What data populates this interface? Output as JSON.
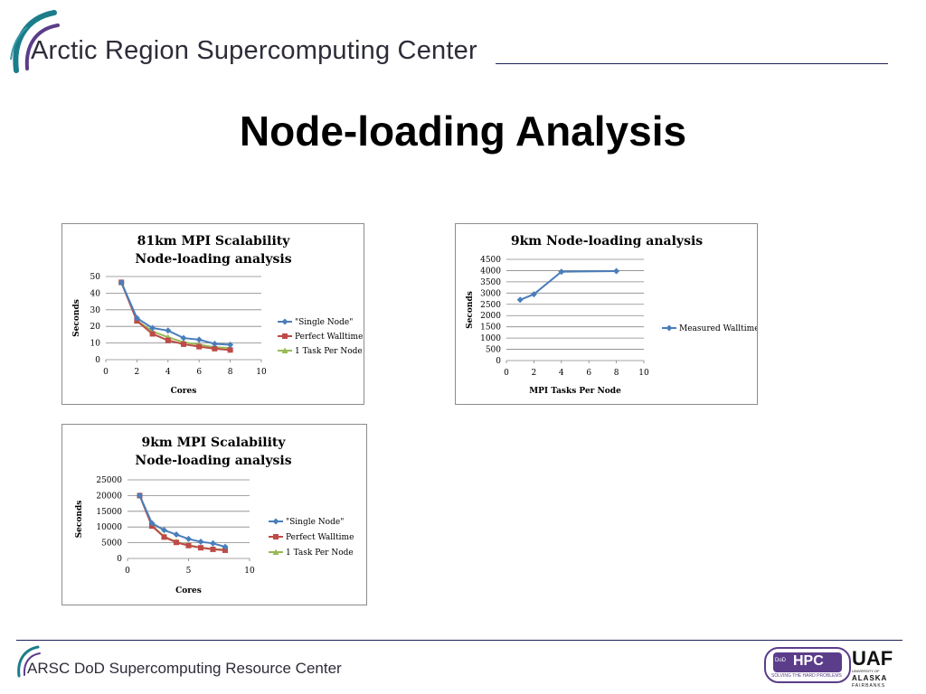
{
  "header": {
    "title": "Arctic Region Supercomputing Center"
  },
  "slide": {
    "title": "Node-loading Analysis"
  },
  "footer": {
    "text": "ARSC DoD Supercomputing Resource Center",
    "hpc_logo": {
      "word": "HPC",
      "small_text": "DoD",
      "tagline": "SOLVING THE HARD PROBLEMS"
    },
    "uaf_logo": {
      "word": "UAF",
      "sub": "UNIVERSITY OF",
      "alaska": "ALASKA",
      "city": "FAIRBANKS"
    }
  },
  "colors": {
    "single_node": "#4a7ebb",
    "perfect": "#be4b48",
    "one_task": "#98b954",
    "grid": "#868686",
    "logo_arc_teal": "#1b7d8a",
    "logo_arc_purple": "#5b3d8a",
    "hpc_purple": "#5b3d8a"
  },
  "chart_data": [
    {
      "type": "line",
      "title": "81km MPI Scalability",
      "subtitle": "Node-loading analysis",
      "xlabel": "Cores",
      "ylabel": "Seconds",
      "xlim": [
        0,
        10
      ],
      "ylim": [
        0,
        50
      ],
      "xticks": [
        0,
        2,
        4,
        6,
        8,
        10
      ],
      "yticks": [
        0,
        10,
        20,
        30,
        40,
        50
      ],
      "grid": "horizontal",
      "legend": "right",
      "series": [
        {
          "name": "\"Single Node\"",
          "color": "#4a7ebb",
          "marker": "diamond",
          "x": [
            1,
            2,
            3,
            4,
            5,
            6,
            7,
            8
          ],
          "y": [
            46.5,
            25,
            19,
            17.5,
            13,
            12,
            9.5,
            9
          ]
        },
        {
          "name": "Perfect Walltime",
          "color": "#be4b48",
          "marker": "square",
          "x": [
            1,
            2,
            3,
            4,
            5,
            6,
            7,
            8
          ],
          "y": [
            46.5,
            23.3,
            15.5,
            11.6,
            9.3,
            7.8,
            6.6,
            5.8
          ]
        },
        {
          "name": "1 Task Per Node",
          "color": "#98b954",
          "marker": "triangle",
          "x": [
            1,
            2,
            3,
            4,
            5,
            6,
            7,
            8
          ],
          "y": [
            46.5,
            23.5,
            17,
            13.5,
            10.5,
            9,
            7.5,
            7
          ]
        }
      ]
    },
    {
      "type": "line",
      "title": "9km Node-loading analysis",
      "xlabel": "MPI Tasks Per Node",
      "ylabel": "Seconds",
      "xlim": [
        0,
        10
      ],
      "ylim": [
        0,
        4500
      ],
      "xticks": [
        0,
        2,
        4,
        6,
        8,
        10
      ],
      "yticks": [
        0,
        500,
        1000,
        1500,
        2000,
        2500,
        3000,
        3500,
        4000,
        4500
      ],
      "grid": "horizontal",
      "legend": "right",
      "series": [
        {
          "name": "Measured Walltime",
          "color": "#4a7ebb",
          "marker": "diamond",
          "x": [
            1,
            2,
            4,
            8
          ],
          "y": [
            2700,
            2950,
            3950,
            3980
          ]
        }
      ]
    },
    {
      "type": "line",
      "title": "9km MPI Scalability",
      "subtitle": "Node-loading analysis",
      "xlabel": "Cores",
      "ylabel": "Seconds",
      "xlim": [
        0,
        10
      ],
      "ylim": [
        0,
        25000
      ],
      "xticks": [
        0,
        5,
        10
      ],
      "yticks": [
        0,
        5000,
        10000,
        15000,
        20000,
        25000
      ],
      "grid": "horizontal",
      "legend": "right",
      "series": [
        {
          "name": "\"Single Node\"",
          "color": "#4a7ebb",
          "marker": "diamond",
          "x": [
            1,
            2,
            3,
            4,
            5,
            6,
            7,
            8
          ],
          "y": [
            20000,
            11200,
            9000,
            7600,
            6200,
            5300,
            4800,
            3700
          ]
        },
        {
          "name": "Perfect Walltime",
          "color": "#be4b48",
          "marker": "square",
          "x": [
            1,
            2,
            3,
            4,
            5,
            6,
            7,
            8
          ],
          "y": [
            20000,
            10300,
            6800,
            5100,
            4100,
            3400,
            2900,
            2600
          ]
        },
        {
          "name": "1 Task Per Node",
          "color": "#98b954",
          "marker": "triangle",
          "x": [
            1,
            2,
            3,
            4,
            5,
            6,
            7,
            8
          ],
          "y": [
            20000,
            10500,
            7000,
            5300,
            4200,
            3500,
            3000,
            2800
          ]
        }
      ]
    }
  ]
}
